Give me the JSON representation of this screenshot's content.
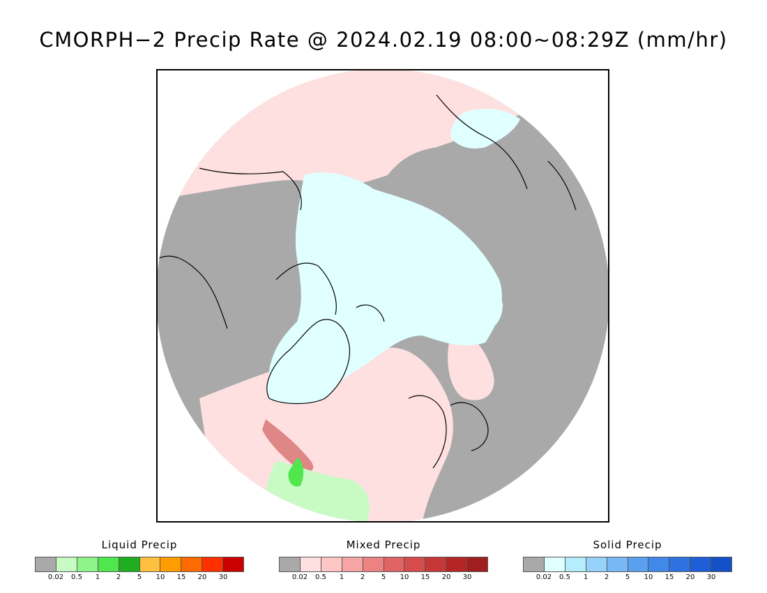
{
  "title": "CMORPH−2 Precip Rate @ 2024.02.19 08:00~08:29Z (mm/hr)",
  "colors": {
    "no_precip": "#a9a9a9",
    "light_mixed_background": "#ffe0e0",
    "ice_cap": "#e0ffff",
    "coastline": "#000000"
  },
  "legends": [
    {
      "title": "Liquid Precip",
      "colors": [
        "#a9a9a9",
        "#c8fbc4",
        "#8ef58a",
        "#50e64e",
        "#1fae1f",
        "#ffc040",
        "#ff9c00",
        "#ff6a00",
        "#ff3000",
        "#c80000"
      ],
      "ticks": [
        "0.02",
        "0.5",
        "1",
        "2",
        "5",
        "10",
        "15",
        "20",
        "30"
      ]
    },
    {
      "title": "Mixed Precip",
      "colors": [
        "#a9a9a9",
        "#ffe0e0",
        "#ffc6c6",
        "#f6a4a4",
        "#ec8282",
        "#e06464",
        "#d44c4c",
        "#c63838",
        "#b42626",
        "#a01e1e"
      ],
      "ticks": [
        "0.02",
        "0.5",
        "1",
        "2",
        "5",
        "10",
        "15",
        "20",
        "30"
      ]
    },
    {
      "title": "Solid Precip",
      "colors": [
        "#a9a9a9",
        "#e0ffff",
        "#b4eefc",
        "#96d2fa",
        "#78b8f5",
        "#5aa0ef",
        "#4088ea",
        "#2e72e2",
        "#1e5ed6",
        "#1450c8"
      ],
      "ticks": [
        "0.02",
        "0.5",
        "1",
        "2",
        "5",
        "10",
        "15",
        "20",
        "30"
      ]
    }
  ]
}
